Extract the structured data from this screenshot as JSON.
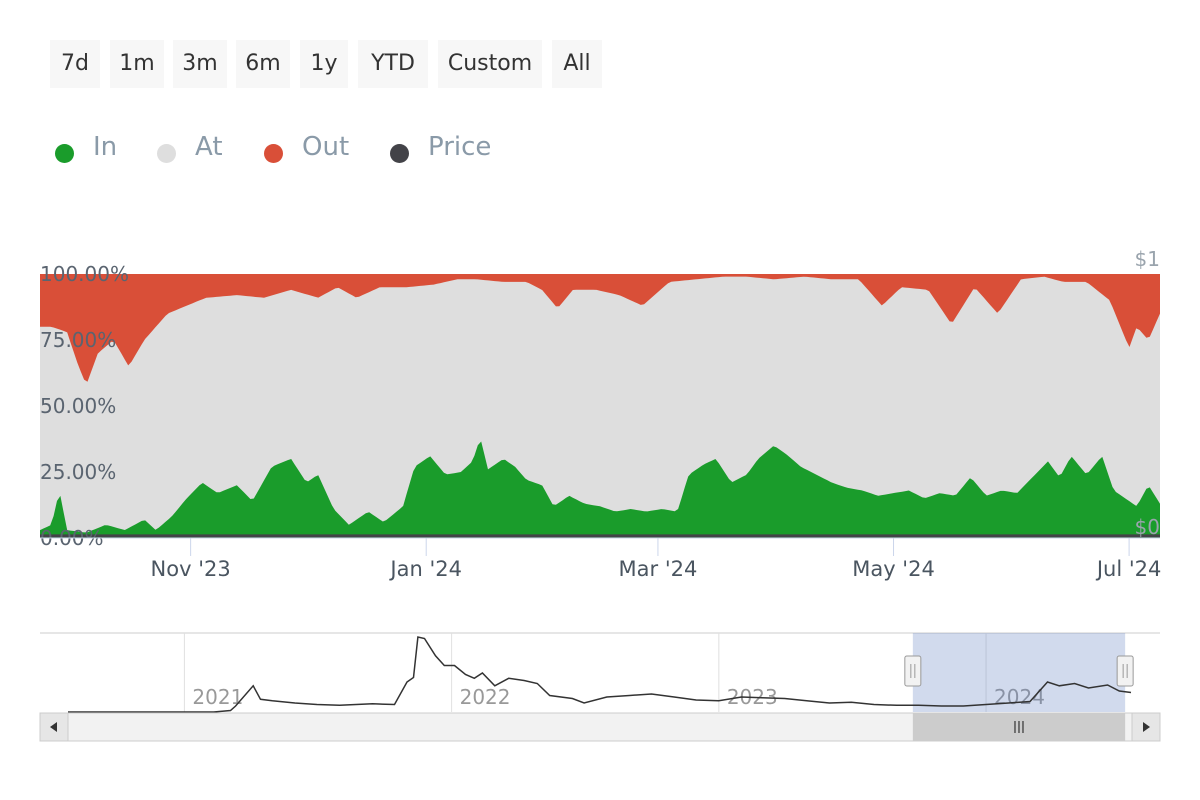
{
  "range_selector": {
    "buttons": [
      "7d",
      "1m",
      "3m",
      "6m",
      "1y",
      "YTD",
      "Custom",
      "All"
    ]
  },
  "legend": {
    "items": [
      {
        "label": "In",
        "color": "#1a9c2b"
      },
      {
        "label": "At",
        "color": "#dedede"
      },
      {
        "label": "Out",
        "color": "#d94f38"
      },
      {
        "label": "Price",
        "color": "#434348"
      }
    ]
  },
  "chart_data": {
    "type": "area",
    "stacking": "percent",
    "title": "",
    "ylabel": "",
    "y_ticks": [
      "0.00%",
      "25.00%",
      "50.00%",
      "75.00%",
      "100.00%"
    ],
    "ylim": [
      0,
      100
    ],
    "price_axis_ticks": [
      "$0",
      "$1"
    ],
    "x_ticks": [
      "Nov '23",
      "Jan '24",
      "Mar '24",
      "May '24",
      "Jul '24"
    ],
    "x_range": [
      "2023-09-23",
      "2024-07-09"
    ],
    "series": [
      {
        "name": "In",
        "color": "#1a9c2b",
        "points": [
          [
            "2023-09-23",
            3
          ],
          [
            "2023-09-26",
            5
          ],
          [
            "2023-09-28",
            18
          ],
          [
            "2023-09-30",
            3
          ],
          [
            "2023-10-05",
            2
          ],
          [
            "2023-10-10",
            5
          ],
          [
            "2023-10-15",
            3
          ],
          [
            "2023-10-20",
            7
          ],
          [
            "2023-10-23",
            3
          ],
          [
            "2023-10-27",
            8
          ],
          [
            "2023-10-31",
            15
          ],
          [
            "2023-11-04",
            21
          ],
          [
            "2023-11-08",
            17
          ],
          [
            "2023-11-13",
            20
          ],
          [
            "2023-11-17",
            14
          ],
          [
            "2023-11-22",
            27
          ],
          [
            "2023-11-27",
            30
          ],
          [
            "2023-12-01",
            21
          ],
          [
            "2023-12-04",
            24
          ],
          [
            "2023-12-08",
            11
          ],
          [
            "2023-12-12",
            5
          ],
          [
            "2023-12-17",
            10
          ],
          [
            "2023-12-21",
            6
          ],
          [
            "2023-12-26",
            12
          ],
          [
            "2023-12-29",
            27
          ],
          [
            "2024-01-02",
            31
          ],
          [
            "2024-01-06",
            24
          ],
          [
            "2024-01-10",
            25
          ],
          [
            "2024-01-13",
            29
          ],
          [
            "2024-01-15",
            38
          ],
          [
            "2024-01-17",
            26
          ],
          [
            "2024-01-21",
            30
          ],
          [
            "2024-01-24",
            27
          ],
          [
            "2024-01-27",
            22
          ],
          [
            "2024-01-31",
            20
          ],
          [
            "2024-02-03",
            12
          ],
          [
            "2024-02-07",
            16
          ],
          [
            "2024-02-11",
            13
          ],
          [
            "2024-02-15",
            12
          ],
          [
            "2024-02-19",
            10
          ],
          [
            "2024-02-23",
            11
          ],
          [
            "2024-02-27",
            10
          ],
          [
            "2024-03-02",
            11
          ],
          [
            "2024-03-06",
            10
          ],
          [
            "2024-03-09",
            24
          ],
          [
            "2024-03-13",
            28
          ],
          [
            "2024-03-16",
            30
          ],
          [
            "2024-03-20",
            21
          ],
          [
            "2024-03-24",
            24
          ],
          [
            "2024-03-27",
            30
          ],
          [
            "2024-03-31",
            35
          ],
          [
            "2024-04-03",
            32
          ],
          [
            "2024-04-07",
            27
          ],
          [
            "2024-04-11",
            24
          ],
          [
            "2024-04-15",
            21
          ],
          [
            "2024-04-19",
            19
          ],
          [
            "2024-04-23",
            18
          ],
          [
            "2024-04-27",
            16
          ],
          [
            "2024-05-01",
            17
          ],
          [
            "2024-05-05",
            18
          ],
          [
            "2024-05-09",
            15
          ],
          [
            "2024-05-13",
            17
          ],
          [
            "2024-05-17",
            16
          ],
          [
            "2024-05-21",
            23
          ],
          [
            "2024-05-25",
            16
          ],
          [
            "2024-05-29",
            18
          ],
          [
            "2024-06-02",
            17
          ],
          [
            "2024-06-06",
            23
          ],
          [
            "2024-06-10",
            29
          ],
          [
            "2024-06-13",
            23
          ],
          [
            "2024-06-16",
            31
          ],
          [
            "2024-06-20",
            24
          ],
          [
            "2024-06-24",
            31
          ],
          [
            "2024-06-27",
            18
          ],
          [
            "2024-06-30",
            15
          ],
          [
            "2024-07-03",
            12
          ],
          [
            "2024-07-06",
            20
          ],
          [
            "2024-07-09",
            13
          ]
        ]
      },
      {
        "name": "Out",
        "color": "#d94f38",
        "points": [
          [
            "2023-09-23",
            20
          ],
          [
            "2023-09-26",
            20
          ],
          [
            "2023-09-30",
            22
          ],
          [
            "2023-10-03",
            35
          ],
          [
            "2023-10-05",
            42
          ],
          [
            "2023-10-08",
            30
          ],
          [
            "2023-10-12",
            25
          ],
          [
            "2023-10-16",
            35
          ],
          [
            "2023-10-20",
            25
          ],
          [
            "2023-10-26",
            15
          ],
          [
            "2023-10-31",
            12
          ],
          [
            "2023-11-05",
            9
          ],
          [
            "2023-11-13",
            8
          ],
          [
            "2023-11-20",
            9
          ],
          [
            "2023-11-27",
            6
          ],
          [
            "2023-12-04",
            9
          ],
          [
            "2023-12-09",
            5
          ],
          [
            "2023-12-14",
            9
          ],
          [
            "2023-12-20",
            5
          ],
          [
            "2023-12-27",
            5
          ],
          [
            "2024-01-03",
            4
          ],
          [
            "2024-01-09",
            2
          ],
          [
            "2024-01-14",
            2
          ],
          [
            "2024-01-21",
            3
          ],
          [
            "2024-01-27",
            3
          ],
          [
            "2024-01-31",
            6
          ],
          [
            "2024-02-04",
            13
          ],
          [
            "2024-02-08",
            6
          ],
          [
            "2024-02-14",
            6
          ],
          [
            "2024-02-20",
            8
          ],
          [
            "2024-02-26",
            12
          ],
          [
            "2024-03-04",
            3
          ],
          [
            "2024-03-11",
            2
          ],
          [
            "2024-03-18",
            1
          ],
          [
            "2024-03-24",
            1
          ],
          [
            "2024-03-31",
            2
          ],
          [
            "2024-04-08",
            1
          ],
          [
            "2024-04-15",
            2
          ],
          [
            "2024-04-22",
            2
          ],
          [
            "2024-04-28",
            12
          ],
          [
            "2024-05-03",
            5
          ],
          [
            "2024-05-10",
            6
          ],
          [
            "2024-05-16",
            19
          ],
          [
            "2024-05-22",
            5
          ],
          [
            "2024-05-28",
            15
          ],
          [
            "2024-06-03",
            2
          ],
          [
            "2024-06-09",
            1
          ],
          [
            "2024-06-14",
            3
          ],
          [
            "2024-06-20",
            3
          ],
          [
            "2024-06-26",
            10
          ],
          [
            "2024-07-01",
            28
          ],
          [
            "2024-07-03",
            20
          ],
          [
            "2024-07-06",
            25
          ],
          [
            "2024-07-09",
            15
          ]
        ]
      }
    ],
    "price_series": {
      "name": "Price",
      "color": "#434348",
      "points": [
        [
          "2023-09-23",
          0.004
        ],
        [
          "2024-07-09",
          0.004
        ]
      ]
    },
    "navigator": {
      "x_ticks": [
        "2021",
        "2022",
        "2023",
        "2024"
      ],
      "x_range": [
        "2020-07-26",
        "2024-07-17"
      ],
      "selection": [
        "2023-09-23",
        "2024-07-09"
      ],
      "points": [
        [
          "2020-07-26",
          0.0
        ],
        [
          "2021-02-10",
          0.0
        ],
        [
          "2021-03-05",
          0.02
        ],
        [
          "2021-03-12",
          0.08
        ],
        [
          "2021-04-05",
          0.35
        ],
        [
          "2021-04-15",
          0.17
        ],
        [
          "2021-05-01",
          0.15
        ],
        [
          "2021-06-01",
          0.12
        ],
        [
          "2021-07-01",
          0.1
        ],
        [
          "2021-08-01",
          0.09
        ],
        [
          "2021-09-15",
          0.11
        ],
        [
          "2021-10-15",
          0.1
        ],
        [
          "2021-11-01",
          0.4
        ],
        [
          "2021-11-10",
          0.46
        ],
        [
          "2021-11-16",
          1.0
        ],
        [
          "2021-11-25",
          0.98
        ],
        [
          "2021-12-10",
          0.75
        ],
        [
          "2021-12-22",
          0.62
        ],
        [
          "2022-01-05",
          0.62
        ],
        [
          "2022-01-20",
          0.5
        ],
        [
          "2022-02-01",
          0.45
        ],
        [
          "2022-02-12",
          0.52
        ],
        [
          "2022-03-01",
          0.35
        ],
        [
          "2022-03-20",
          0.45
        ],
        [
          "2022-04-10",
          0.42
        ],
        [
          "2022-04-28",
          0.38
        ],
        [
          "2022-05-15",
          0.22
        ],
        [
          "2022-06-15",
          0.18
        ],
        [
          "2022-07-01",
          0.12
        ],
        [
          "2022-08-01",
          0.2
        ],
        [
          "2022-09-01",
          0.22
        ],
        [
          "2022-10-01",
          0.24
        ],
        [
          "2022-11-01",
          0.2
        ],
        [
          "2022-12-01",
          0.16
        ],
        [
          "2023-01-01",
          0.15
        ],
        [
          "2023-02-01",
          0.2
        ],
        [
          "2023-03-01",
          0.19
        ],
        [
          "2023-04-01",
          0.18
        ],
        [
          "2023-05-01",
          0.15
        ],
        [
          "2023-06-01",
          0.12
        ],
        [
          "2023-07-01",
          0.13
        ],
        [
          "2023-08-01",
          0.1
        ],
        [
          "2023-09-01",
          0.09
        ],
        [
          "2023-10-01",
          0.09
        ],
        [
          "2023-11-01",
          0.08
        ],
        [
          "2023-12-01",
          0.08
        ],
        [
          "2024-01-01",
          0.1
        ],
        [
          "2024-02-01",
          0.12
        ],
        [
          "2024-03-01",
          0.14
        ],
        [
          "2024-03-25",
          0.4
        ],
        [
          "2024-04-10",
          0.35
        ],
        [
          "2024-05-01",
          0.38
        ],
        [
          "2024-05-20",
          0.32
        ],
        [
          "2024-06-15",
          0.36
        ],
        [
          "2024-07-01",
          0.28
        ],
        [
          "2024-07-17",
          0.26
        ]
      ]
    }
  }
}
